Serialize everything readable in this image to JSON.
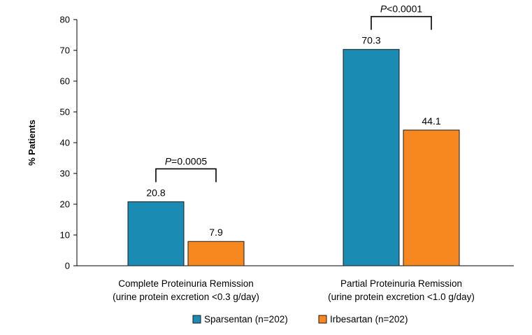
{
  "chart_data": {
    "type": "bar",
    "ylabel": "% Patients",
    "ylim": [
      0,
      80
    ],
    "yticks": [
      0,
      10,
      20,
      30,
      40,
      50,
      60,
      70,
      80
    ],
    "categories": [
      [
        "Complete Proteinuria Remission",
        "(urine protein excretion <0.3 g/day)"
      ],
      [
        "Partial Proteinuria Remission",
        "(urine protein excretion <1.0 g/day)"
      ]
    ],
    "series": [
      {
        "name": "Sparsentan (n=202)",
        "values": [
          20.8,
          70.3
        ],
        "labels": [
          "20.8",
          "70.3"
        ],
        "color": "#1a8cb4"
      },
      {
        "name": "Irbesartan (n=202)",
        "values": [
          7.9,
          44.1
        ],
        "labels": [
          "7.9",
          "44.1"
        ],
        "color": "#f7881f"
      }
    ],
    "annotations": [
      {
        "category": 0,
        "p_letter": "P",
        "p_rest": "=0.0005"
      },
      {
        "category": 1,
        "p_letter": "P",
        "p_rest": "<0.0001"
      }
    ],
    "grid": false,
    "legend_position": "bottom"
  }
}
